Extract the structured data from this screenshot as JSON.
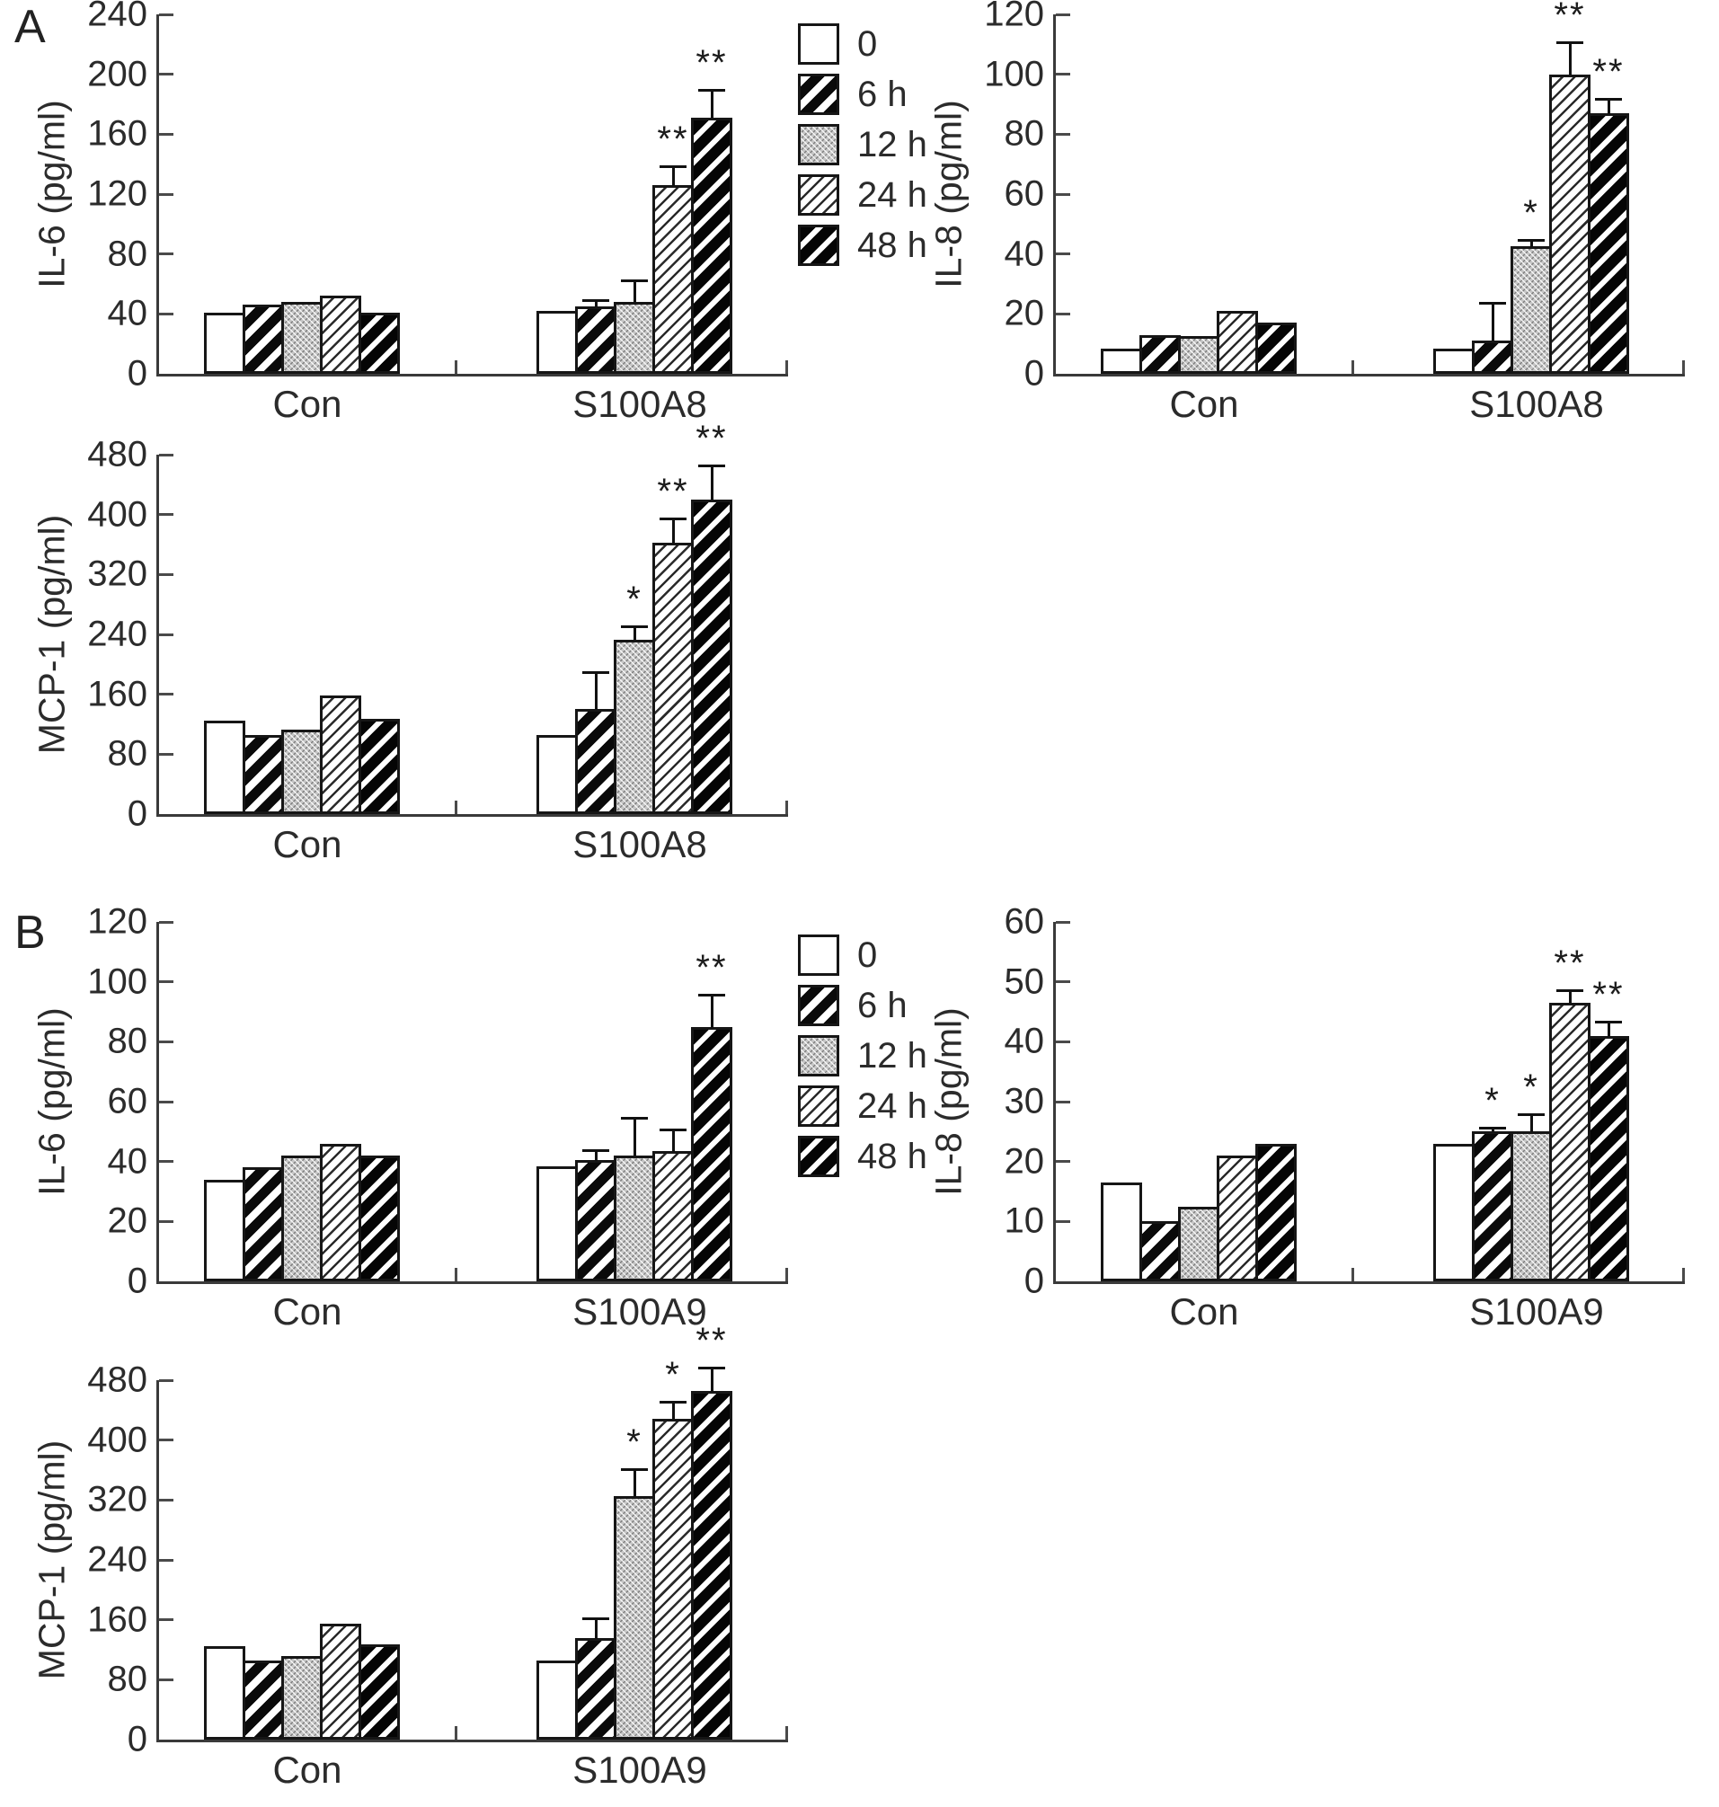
{
  "panels": [
    {
      "label": "A"
    },
    {
      "label": "B"
    }
  ],
  "legend": {
    "items": [
      {
        "label": "0",
        "pattern": "pat-0"
      },
      {
        "label": "6 h",
        "pattern": "pat-6"
      },
      {
        "label": "12 h",
        "pattern": "pat-12"
      },
      {
        "label": "24 h",
        "pattern": "pat-24"
      },
      {
        "label": "48 h",
        "pattern": "pat-48"
      }
    ]
  },
  "chart_data": [
    {
      "id": "panel-a-il6",
      "type": "bar",
      "panel": "A",
      "ylabel": "IL-6 (pg/ml)",
      "ylim": [
        0,
        240
      ],
      "yticks": [
        0,
        40,
        80,
        120,
        160,
        200,
        240
      ],
      "grid": false,
      "legend_position": "outside-top-right",
      "series_labels": [
        "0",
        "6 h",
        "12 h",
        "24 h",
        "48 h"
      ],
      "categories": [
        "Con",
        "S100A8"
      ],
      "groups": [
        {
          "label": "Con",
          "values": [
            41,
            46,
            48,
            52,
            41
          ],
          "errors": [
            0,
            0,
            0,
            0,
            0
          ],
          "sig": [
            "",
            "",
            "",
            "",
            ""
          ]
        },
        {
          "label": "S100A8",
          "values": [
            42,
            45,
            48,
            126,
            171
          ],
          "errors": [
            0,
            5,
            15,
            13,
            19
          ],
          "sig": [
            "",
            "",
            "",
            "**",
            "**"
          ]
        }
      ]
    },
    {
      "id": "panel-a-il8",
      "type": "bar",
      "panel": "A",
      "ylabel": "IL-8 (pg/ml)",
      "ylim": [
        0,
        120
      ],
      "yticks": [
        0,
        20,
        40,
        60,
        80,
        100,
        120
      ],
      "grid": false,
      "legend_position": "none",
      "series_labels": [
        "0",
        "6 h",
        "12 h",
        "24 h",
        "48 h"
      ],
      "categories": [
        "Con",
        "S100A8"
      ],
      "groups": [
        {
          "label": "Con",
          "values": [
            8.5,
            13,
            12.5,
            21,
            17
          ],
          "errors": [
            0,
            0,
            0,
            0,
            0
          ],
          "sig": [
            "",
            "",
            "",
            "",
            ""
          ]
        },
        {
          "label": "S100A8",
          "values": [
            8.5,
            11,
            42.5,
            100,
            87
          ],
          "errors": [
            0,
            13,
            2.5,
            11,
            5
          ],
          "sig": [
            "",
            "",
            "*",
            "**",
            "**"
          ]
        }
      ]
    },
    {
      "id": "panel-a-mcp1",
      "type": "bar",
      "panel": "A",
      "ylabel": "MCP-1 (pg/ml)",
      "ylim": [
        0,
        480
      ],
      "yticks": [
        0,
        80,
        160,
        240,
        320,
        400,
        480
      ],
      "grid": false,
      "legend_position": "none",
      "series_labels": [
        "0",
        "6 h",
        "12 h",
        "24 h",
        "48 h"
      ],
      "categories": [
        "Con",
        "S100A8"
      ],
      "groups": [
        {
          "label": "Con",
          "values": [
            125,
            105,
            113,
            158,
            127
          ],
          "errors": [
            0,
            0,
            0,
            0,
            0
          ],
          "sig": [
            "",
            "",
            "",
            "",
            ""
          ]
        },
        {
          "label": "S100A8",
          "values": [
            105,
            140,
            233,
            362,
            420
          ],
          "errors": [
            0,
            50,
            19,
            33,
            47
          ],
          "sig": [
            "",
            "",
            "*",
            "**",
            "**"
          ]
        }
      ]
    },
    {
      "id": "panel-b-il6",
      "type": "bar",
      "panel": "B",
      "ylabel": "IL-6 (pg/ml)",
      "ylim": [
        0,
        120
      ],
      "yticks": [
        0,
        20,
        40,
        60,
        80,
        100,
        120
      ],
      "grid": false,
      "legend_position": "outside-top-right",
      "series_labels": [
        "0",
        "6 h",
        "12 h",
        "24 h",
        "48 h"
      ],
      "categories": [
        "Con",
        "S100A9"
      ],
      "groups": [
        {
          "label": "Con",
          "values": [
            34,
            38,
            42,
            46,
            42
          ],
          "errors": [
            0,
            0,
            0,
            0,
            0
          ],
          "sig": [
            "",
            "",
            "",
            "",
            ""
          ]
        },
        {
          "label": "S100A9",
          "values": [
            38.5,
            40.5,
            42,
            43.5,
            85
          ],
          "errors": [
            0,
            3.5,
            13,
            7.5,
            11
          ],
          "sig": [
            "",
            "",
            "",
            "",
            "**"
          ]
        }
      ]
    },
    {
      "id": "panel-b-il8",
      "type": "bar",
      "panel": "B",
      "ylabel": "IL-8 (pg/ml)",
      "ylim": [
        0,
        60
      ],
      "yticks": [
        0,
        10,
        20,
        30,
        40,
        50,
        60
      ],
      "grid": false,
      "legend_position": "none",
      "series_labels": [
        "0",
        "6 h",
        "12 h",
        "24 h",
        "48 h"
      ],
      "categories": [
        "Con",
        "S100A9"
      ],
      "groups": [
        {
          "label": "Con",
          "values": [
            16.5,
            10,
            12.5,
            21,
            23
          ],
          "errors": [
            0,
            0,
            0,
            0,
            0
          ],
          "sig": [
            "",
            "",
            "",
            "",
            ""
          ]
        },
        {
          "label": "S100A9",
          "values": [
            23,
            25,
            25,
            46.5,
            41
          ],
          "errors": [
            0,
            0.8,
            3,
            2.2,
            2.5
          ],
          "sig": [
            "",
            "*",
            "*",
            "**",
            "**"
          ]
        }
      ]
    },
    {
      "id": "panel-b-mcp1",
      "type": "bar",
      "panel": "B",
      "ylabel": "MCP-1 (pg/ml)",
      "ylim": [
        0,
        480
      ],
      "yticks": [
        0,
        80,
        160,
        240,
        320,
        400,
        480
      ],
      "grid": false,
      "legend_position": "none",
      "series_labels": [
        "0",
        "6 h",
        "12 h",
        "24 h",
        "48 h"
      ],
      "categories": [
        "Con",
        "S100A9"
      ],
      "groups": [
        {
          "label": "Con",
          "values": [
            125,
            105,
            112,
            155,
            127
          ],
          "errors": [
            0,
            0,
            0,
            0,
            0
          ],
          "sig": [
            "",
            "",
            "",
            "",
            ""
          ]
        },
        {
          "label": "S100A9",
          "values": [
            105,
            135,
            325,
            428,
            465
          ],
          "errors": [
            0,
            27,
            37,
            24,
            32
          ],
          "sig": [
            "",
            "",
            "*",
            "*",
            "**"
          ]
        }
      ]
    }
  ]
}
